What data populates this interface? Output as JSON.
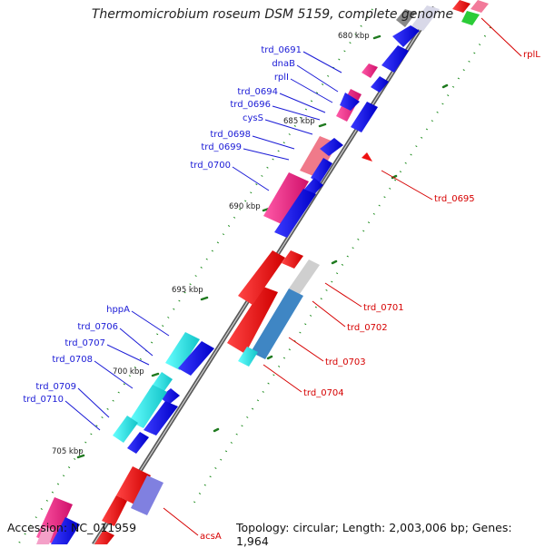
{
  "title": "Thermomicrobium roseum DSM 5159, complete genome",
  "footer": {
    "accession": "Accession: NC_011959",
    "topology": "Topology: circular; Length: 2,003,006 bp; Genes: 1,964"
  },
  "ticks": [
    "680 kbp",
    "685 kbp",
    "690 kbp",
    "695 kbp",
    "700 kbp",
    "705 kbp"
  ],
  "labels_left": [
    "trd_0691",
    "dnaB",
    "rplI",
    "trd_0694",
    "trd_0696",
    "cysS",
    "trd_0698",
    "trd_0699",
    "trd_0700",
    "hppA",
    "trd_0706",
    "trd_0707",
    "trd_0708",
    "trd_0709",
    "trd_0710"
  ],
  "labels_right": [
    "rplL",
    "trd_0695",
    "trd_0701",
    "trd_0702",
    "trd_0703",
    "trd_0704",
    "acsA"
  ],
  "colors": {
    "forward_label": "#1a1ad6",
    "reverse_label": "#d60000",
    "forward_gene": "#1010e0",
    "reverse_gene": "#ee1111",
    "pink_gene": "#e8207a",
    "cyan_gene": "#18d8d8",
    "green_gene": "#22cc33",
    "backbone": "#777777"
  }
}
